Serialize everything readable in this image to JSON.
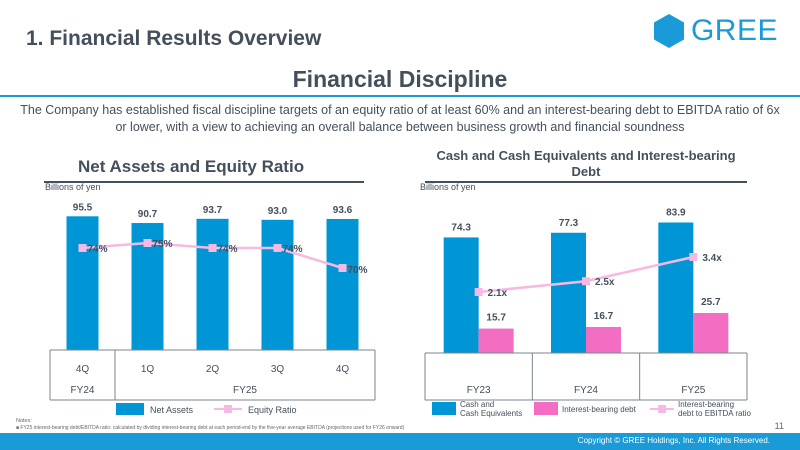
{
  "header": {
    "section_title": "1. Financial Results Overview",
    "logo_text": "GREE"
  },
  "main": {
    "title": "Financial Discipline",
    "description": "The Company has established fiscal discipline targets of an equity ratio of at least 60% and an interest-bearing debt to EBITDA ratio of 6x or lower, with a view to achieving an overall balance between business growth and financial soundness"
  },
  "colors": {
    "accent": "#1a9bd7",
    "bar_blue": "#0096d6",
    "line_pink": "#f7b9e2",
    "bar_pink": "#f36ec3",
    "text": "#444f5c"
  },
  "chart_data": [
    {
      "type": "bar",
      "title": "Net Assets and Equity Ratio",
      "unit_label": "Billions of yen",
      "categories": [
        "4Q",
        "1Q",
        "2Q",
        "3Q",
        "4Q"
      ],
      "groups": [
        {
          "label": "FY24",
          "span": 1
        },
        {
          "label": "FY25",
          "span": 4
        }
      ],
      "ylim": [
        0,
        100
      ],
      "series": [
        {
          "name": "Net Assets",
          "kind": "bar",
          "values": [
            95.5,
            90.7,
            93.7,
            93.0,
            93.6
          ],
          "labels": [
            "95.5",
            "90.7",
            "93.7",
            "93.0",
            "93.6"
          ]
        },
        {
          "name": "Equity Ratio",
          "kind": "line",
          "values": [
            74,
            75,
            74,
            74,
            70
          ],
          "labels": [
            "74%",
            "75%",
            "74%",
            "74%",
            "70%"
          ]
        }
      ]
    },
    {
      "type": "bar",
      "title": "Cash and Cash Equivalents and Interest-bearing Debt",
      "unit_label": "Billions of yen",
      "categories": [
        "FY23",
        "FY24",
        "FY25"
      ],
      "ylim": [
        0,
        90
      ],
      "series": [
        {
          "name": "Cash and Cash Equivalents",
          "kind": "bar",
          "values": [
            74.3,
            77.3,
            83.9
          ],
          "labels": [
            "74.3",
            "77.3",
            "83.9"
          ]
        },
        {
          "name": "Interest-bearing debt",
          "kind": "bar",
          "values": [
            15.7,
            16.7,
            25.7
          ],
          "labels": [
            "15.7",
            "16.7",
            "25.7"
          ]
        },
        {
          "name": "Interest-bearing debt to EBITDA ratio",
          "kind": "line",
          "values": [
            2.1,
            2.5,
            3.4
          ],
          "labels": [
            "2.1x",
            "2.5x",
            "3.4x"
          ]
        }
      ],
      "legend": [
        "Cash and Cash Equivalents",
        "Interest-bearing debt",
        "Interest-bearing debt to EBITDA ratio"
      ]
    }
  ],
  "legend_left": {
    "bar": "Net Assets",
    "line": "Equity Ratio"
  },
  "legend_right": {
    "cash_line1": "Cash and",
    "cash_line2": "Cash Equivalents",
    "debt": "Interest-bearing debt",
    "ratio_line1": "Interest-bearing",
    "ratio_line2": "debt to EBITDA ratio"
  },
  "notes": {
    "label": "Notes:",
    "items": [
      "FY25 interest-bearing debt/EBITDA ratio: calculated by dividing interest-bearing debt at each period-end by the five-year average EBITDA (projections used for FY26 onward)"
    ]
  },
  "footer": {
    "page_number": "11",
    "copyright": "Copyright © GREE Holdings, Inc. All Rights Reserved."
  }
}
